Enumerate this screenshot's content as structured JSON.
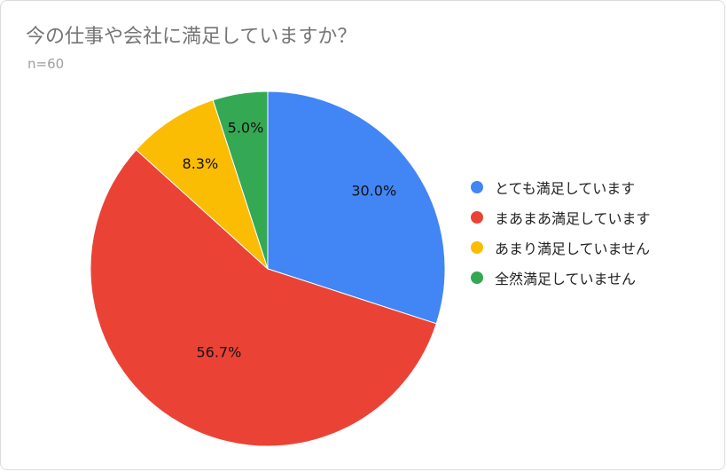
{
  "chart": {
    "title": "今の仕事や会社に満足していますか？",
    "subtitle": "n=60"
  },
  "chart_data": {
    "type": "pie",
    "categories": [
      "とても満足しています",
      "まあまあ満足しています",
      "あまり満足していません",
      "全然満足していません"
    ],
    "values": [
      30.0,
      56.7,
      8.3,
      5.0
    ],
    "labels": [
      "30.0%",
      "56.7%",
      "8.3%",
      "5.0%"
    ],
    "colors": [
      "#4285F4",
      "#EA4335",
      "#FBBC04",
      "#34A853"
    ],
    "start_angle": "12 o'clock",
    "direction": "clockwise",
    "legend_position": "right"
  }
}
